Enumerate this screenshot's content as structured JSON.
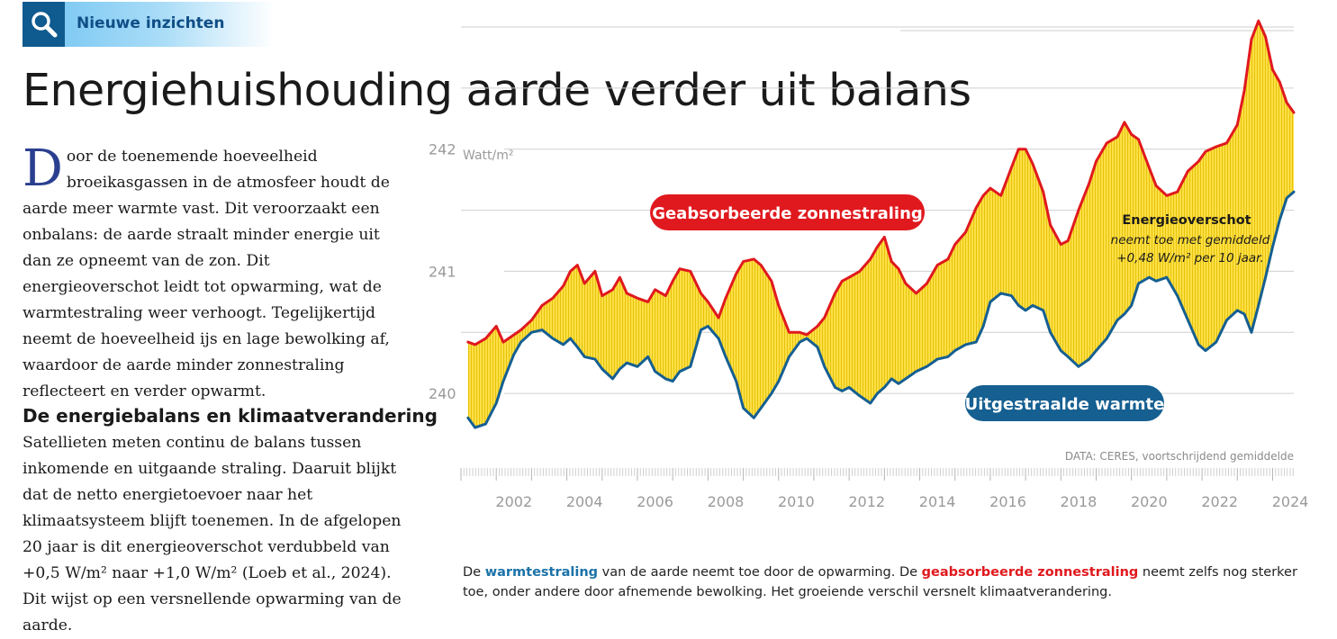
{
  "tag": {
    "label": "Nieuwe inzichten",
    "icon": "search-icon"
  },
  "title": "Energiehuishouding aarde verder uit balans",
  "intro": {
    "dropcap": "D",
    "text": "oor de toenemende hoeveelheid broeikasgassen in de atmosfeer houdt de aarde meer warmte vast. Dit veroorzaakt een onbalans: de aarde straalt minder energie uit dan ze opneemt van de zon. Dit energieoverschot leidt tot opwarming, wat de warmtestraling weer verhoogt. Tegelijkertijd neemt de hoeveelheid ijs en lage bewolking af, waardoor de aarde minder zonnestraling reflecteert en verder opwarmt."
  },
  "section": {
    "heading": "De energiebalans en klimaatverandering",
    "text": "Satellieten meten continu de balans tussen inkomende en uitgaande straling. Daaruit blijkt dat de netto energietoevoer naar het klimaatsysteem blijft toenemen. In de afgelopen 20 jaar is dit energieoverschot verdubbeld van +0,5 W/m² naar +1,0 W/m² (Loeb et al., 2024). Dit wijst op een versnellende opwarming van de aarde."
  },
  "caption": {
    "p1": "De ",
    "k1": "warmtestraling",
    "p2": " van de aarde neemt toe door de opwarming. De ",
    "k2": "geabsorbeerde zonnestraling",
    "p3": " neemt zelfs nog sterker toe, onder andere door afnemende bewolking. Het groeiende verschil versnelt klimaatverandering."
  },
  "colors": {
    "absorbed": "#e0191e",
    "emitted": "#155f91",
    "fill": "#fce046",
    "hatch": "#e8c10a",
    "grid": "#cfcfcf",
    "tick_text": "#9a9a9a",
    "tag_box": "#0f5a8f"
  },
  "chart_data": {
    "type": "line",
    "unit_label": "Watt/m²",
    "y_ticks": [
      240,
      241,
      242
    ],
    "ylim": [
      239.5,
      243.0
    ],
    "xlim": [
      2001.0,
      2024.6
    ],
    "x_ticks": [
      2002,
      2004,
      2006,
      2008,
      2010,
      2012,
      2014,
      2016,
      2018,
      2020,
      2022,
      2024
    ],
    "grid": true,
    "fill_between": true,
    "source": "DATA: CERES, voortschrijdend gemiddelde",
    "series": [
      {
        "name": "Geabsorbeerde zonnestraling",
        "x": [
          2001.2,
          2001.4,
          2001.7,
          2002.0,
          2002.2,
          2002.5,
          2002.7,
          2003.0,
          2003.3,
          2003.6,
          2003.9,
          2004.1,
          2004.3,
          2004.5,
          2004.8,
          2005.0,
          2005.3,
          2005.5,
          2005.7,
          2006.0,
          2006.3,
          2006.5,
          2006.8,
          2007.0,
          2007.2,
          2007.5,
          2007.8,
          2008.0,
          2008.3,
          2008.5,
          2008.8,
          2009.0,
          2009.3,
          2009.5,
          2009.8,
          2010.0,
          2010.3,
          2010.6,
          2010.8,
          2011.1,
          2011.3,
          2011.6,
          2011.8,
          2012.0,
          2012.3,
          2012.6,
          2012.8,
          2013.0,
          2013.2,
          2013.4,
          2013.6,
          2013.9,
          2014.2,
          2014.5,
          2014.8,
          2015.0,
          2015.3,
          2015.6,
          2015.8,
          2016.0,
          2016.3,
          2016.6,
          2016.8,
          2017.0,
          2017.2,
          2017.5,
          2017.7,
          2018.0,
          2018.2,
          2018.5,
          2018.8,
          2019.0,
          2019.3,
          2019.6,
          2019.8,
          2020.0,
          2020.2,
          2020.5,
          2020.7,
          2021.0,
          2021.3,
          2021.6,
          2021.9,
          2022.1,
          2022.4,
          2022.7,
          2023.0,
          2023.2,
          2023.4,
          2023.6,
          2023.8,
          2024.0,
          2024.2,
          2024.4,
          2024.6
        ],
        "values": [
          240.42,
          240.4,
          240.45,
          240.55,
          240.42,
          240.48,
          240.52,
          240.6,
          240.72,
          240.78,
          240.88,
          241.0,
          241.05,
          240.9,
          241.0,
          240.8,
          240.85,
          240.95,
          240.82,
          240.78,
          240.75,
          240.85,
          240.8,
          240.92,
          241.02,
          241.0,
          240.82,
          240.75,
          240.62,
          240.78,
          240.98,
          241.08,
          241.1,
          241.05,
          240.92,
          240.72,
          240.5,
          240.5,
          240.48,
          240.55,
          240.62,
          240.82,
          240.92,
          240.95,
          241.0,
          241.1,
          241.2,
          241.28,
          241.08,
          241.02,
          240.9,
          240.82,
          240.9,
          241.05,
          241.1,
          241.22,
          241.32,
          241.52,
          241.62,
          241.68,
          241.62,
          241.85,
          242.0,
          242.0,
          241.88,
          241.65,
          241.38,
          241.22,
          241.25,
          241.5,
          241.72,
          241.9,
          242.05,
          242.1,
          242.22,
          242.12,
          242.08,
          241.85,
          241.7,
          241.62,
          241.65,
          241.82,
          241.9,
          241.98,
          242.02,
          242.05,
          242.2,
          242.48,
          242.9,
          243.05,
          242.92,
          242.65,
          242.55,
          242.38,
          242.3
        ]
      },
      {
        "name": "Uitgestraalde warmte",
        "x": [
          2001.2,
          2001.4,
          2001.7,
          2002.0,
          2002.2,
          2002.5,
          2002.7,
          2003.0,
          2003.3,
          2003.6,
          2003.9,
          2004.1,
          2004.3,
          2004.5,
          2004.8,
          2005.0,
          2005.3,
          2005.5,
          2005.7,
          2006.0,
          2006.3,
          2006.5,
          2006.8,
          2007.0,
          2007.2,
          2007.5,
          2007.8,
          2008.0,
          2008.3,
          2008.5,
          2008.8,
          2009.0,
          2009.3,
          2009.5,
          2009.8,
          2010.0,
          2010.3,
          2010.6,
          2010.8,
          2011.1,
          2011.3,
          2011.6,
          2011.8,
          2012.0,
          2012.3,
          2012.6,
          2012.8,
          2013.0,
          2013.2,
          2013.4,
          2013.6,
          2013.9,
          2014.2,
          2014.5,
          2014.8,
          2015.0,
          2015.3,
          2015.6,
          2015.8,
          2016.0,
          2016.3,
          2016.6,
          2016.8,
          2017.0,
          2017.2,
          2017.5,
          2017.7,
          2018.0,
          2018.2,
          2018.5,
          2018.8,
          2019.0,
          2019.3,
          2019.6,
          2019.8,
          2020.0,
          2020.2,
          2020.5,
          2020.7,
          2021.0,
          2021.3,
          2021.6,
          2021.9,
          2022.1,
          2022.4,
          2022.7,
          2023.0,
          2023.2,
          2023.4,
          2023.6,
          2023.8,
          2024.0,
          2024.2,
          2024.4,
          2024.6
        ],
        "values": [
          239.8,
          239.72,
          239.75,
          239.92,
          240.1,
          240.32,
          240.42,
          240.5,
          240.52,
          240.45,
          240.4,
          240.45,
          240.38,
          240.3,
          240.28,
          240.2,
          240.12,
          240.2,
          240.25,
          240.22,
          240.3,
          240.18,
          240.12,
          240.1,
          240.18,
          240.22,
          240.52,
          240.55,
          240.45,
          240.3,
          240.1,
          239.88,
          239.8,
          239.88,
          240.0,
          240.1,
          240.3,
          240.42,
          240.45,
          240.38,
          240.22,
          240.05,
          240.02,
          240.05,
          239.98,
          239.92,
          240.0,
          240.05,
          240.12,
          240.08,
          240.12,
          240.18,
          240.22,
          240.28,
          240.3,
          240.35,
          240.4,
          240.42,
          240.55,
          240.75,
          240.82,
          240.8,
          240.72,
          240.68,
          240.72,
          240.68,
          240.5,
          240.35,
          240.3,
          240.22,
          240.28,
          240.35,
          240.45,
          240.6,
          240.65,
          240.72,
          240.9,
          240.95,
          240.92,
          240.95,
          240.8,
          240.6,
          240.4,
          240.35,
          240.42,
          240.6,
          240.68,
          240.65,
          240.5,
          240.72,
          240.95,
          241.2,
          241.42,
          241.6,
          241.65
        ]
      }
    ],
    "annotations": {
      "absorbed_label": "Geabsorbeerde zonnestraling",
      "emitted_label": "Uitgestraalde warmte",
      "surplus_title": "Energieoverschot",
      "surplus_line1": "neemt toe met gemiddeld",
      "surplus_line2": "+0,48 W/m² per 10 jaar."
    }
  }
}
